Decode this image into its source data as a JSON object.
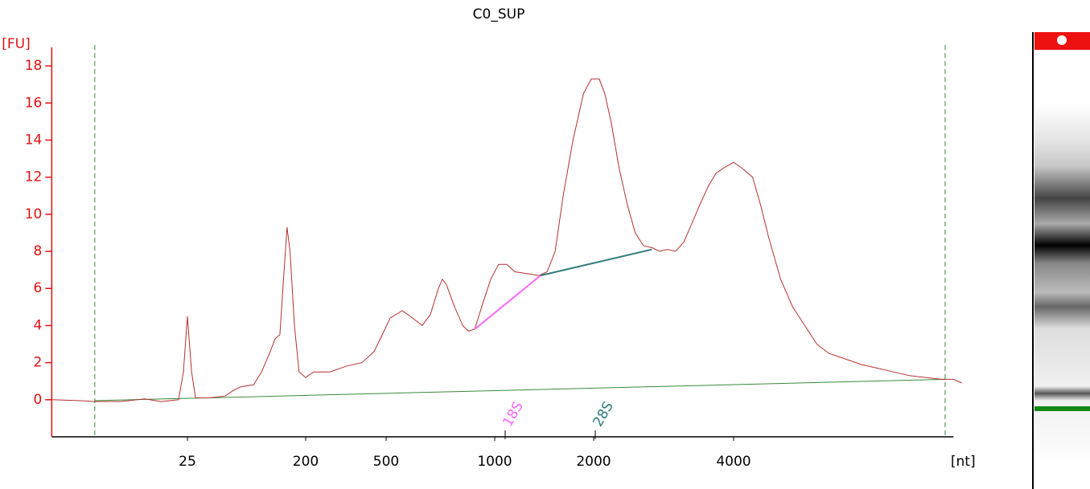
{
  "chart_data": {
    "type": "line",
    "title": "C0_SUP",
    "ylabel": "[FU]",
    "xlabel": "[nt]",
    "ylim": [
      -2,
      19
    ],
    "yticks": [
      0,
      2,
      4,
      6,
      8,
      10,
      12,
      14,
      16,
      18
    ],
    "xlim": [
      2.3,
      11880
    ],
    "xticks": [
      25,
      200,
      500,
      1000,
      2000,
      4000
    ],
    "x": [
      2.3,
      3.8,
      4.9,
      7.7,
      11.8,
      15.7,
      21.4,
      23.3,
      25,
      26.9,
      28.8,
      31.8,
      36.6,
      48.6,
      56,
      64,
      80,
      92,
      106,
      117,
      127,
      134,
      144,
      152,
      164,
      178,
      200,
      219,
      264,
      316,
      380,
      436,
      478,
      513,
      554,
      583,
      630,
      663,
      698,
      716,
      735,
      774,
      815,
      845,
      880,
      927,
      975,
      1028,
      1088,
      1151,
      1253,
      1365,
      1443,
      1527,
      1615,
      1730,
      1862,
      1968,
      2056,
      2113,
      2180,
      2268,
      2363,
      2457,
      2560,
      2667,
      2774,
      2884,
      3000,
      3126,
      3251,
      3381,
      3525,
      3665,
      3811,
      4000,
      4165,
      4394,
      4571,
      4753,
      5047,
      5358,
      5689,
      6039,
      6412,
      6950,
      7516,
      8147,
      8831,
      9550,
      10350,
      11190,
      11880,
      12380
    ],
    "series": [
      {
        "color": "#b3312e",
        "values": [
          0,
          -0.05,
          -0.1,
          -0.1,
          0.05,
          -0.1,
          0,
          1.5,
          4.5,
          1.5,
          0.1,
          0.1,
          0.1,
          0.2,
          0.5,
          0.7,
          0.8,
          1.5,
          2.5,
          3.3,
          3.5,
          6,
          9.3,
          8,
          4,
          1.5,
          1.2,
          1.5,
          1.5,
          1.8,
          2.0,
          2.6,
          3.5,
          4.4,
          4.8,
          4.5,
          4.0,
          4.6,
          6.0,
          6.5,
          6.2,
          5.0,
          4.0,
          3.7,
          3.8,
          5.2,
          6.5,
          7.3,
          7.3,
          6.9,
          6.8,
          6.7,
          6.9,
          8.0,
          11,
          14,
          16.5,
          17.3,
          17.3,
          16.5,
          15,
          12.5,
          10.5,
          9.0,
          8.3,
          8.2,
          8.0,
          8.1,
          8.0,
          8.5,
          9.5,
          10.5,
          11.5,
          12.2,
          12.5,
          12.8,
          12.5,
          12.0,
          10.5,
          8.8,
          6.5,
          5.0,
          4.0,
          3.0,
          2.5,
          2.2,
          1.9,
          1.7,
          1.5,
          1.3,
          1.2,
          1.1,
          1.1,
          0.9
        ]
      }
    ],
    "baseline": {
      "color": "#3a8a3a",
      "x": [
        4.9,
        11400
      ],
      "values": [
        -0.05,
        1.1
      ]
    },
    "marker_lines": {
      "color": "#3a8a3a",
      "x": [
        4.9,
        11400
      ]
    },
    "annotations": [
      {
        "label": "18S",
        "x": 1076,
        "color": "#ff66ff",
        "line_x": [
          880,
          1378
        ],
        "line_values": [
          3.8,
          6.7
        ]
      },
      {
        "label": "28S",
        "x": 2016,
        "color": "#2e7b7b",
        "line_x": [
          1378,
          2666
        ],
        "line_values": [
          6.7,
          8.1
        ]
      }
    ]
  }
}
